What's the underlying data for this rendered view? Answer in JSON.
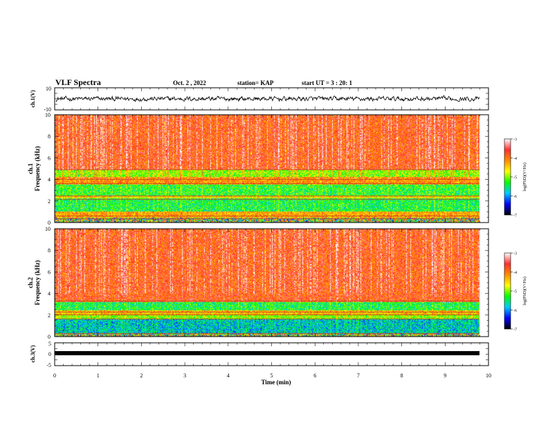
{
  "header": {
    "title": "VLF Spectra",
    "date": "Oct. 2 , 2022",
    "station": "station= KAP",
    "start_ut": "start UT = 3 : 20: 1"
  },
  "chart_data": [
    {
      "type": "line",
      "ylabel": "ch.1(V)",
      "ylim": [
        -10,
        10
      ],
      "yticks": [
        "10",
        "-10"
      ],
      "xlim": [
        0,
        10
      ],
      "series": [
        {
          "y_range": [
            -3,
            3
          ],
          "mean": 0,
          "color": "#000000"
        }
      ]
    },
    {
      "type": "heatmap",
      "ylabel_line1": "ch.1",
      "ylabel_line2": "Frequency (kHz)",
      "ylim": [
        0,
        10
      ],
      "yticks": [
        "0",
        "2",
        "4",
        "6",
        "8",
        "10"
      ],
      "xlim": [
        0,
        9.8
      ],
      "colorbar": {
        "label": "log(PSD)(V²/Hz)",
        "range": [
          -7,
          -3
        ],
        "ticks": [
          "-3",
          "-4",
          "-5",
          "-6",
          "-7"
        ],
        "colors": [
          "#ffffff",
          "#ff3030",
          "#ff8c00",
          "#ffff00",
          "#00ff00",
          "#00c8ff",
          "#0000ff",
          "#000000"
        ]
      },
      "bands": [
        {
          "from": 0,
          "to": 0.4,
          "level": "mixed"
        },
        {
          "from": 0.4,
          "to": 1.0,
          "level": -4.3
        },
        {
          "from": 1.0,
          "to": 2.2,
          "level": -5.4
        },
        {
          "from": 2.2,
          "to": 2.5,
          "level": -4.6
        },
        {
          "from": 2.5,
          "to": 3.5,
          "level": -5.3
        },
        {
          "from": 3.5,
          "to": 4.2,
          "level": -4.2
        },
        {
          "from": 4.2,
          "to": 4.9,
          "level": -5.0
        },
        {
          "from": 4.9,
          "to": 10,
          "level": -3.8
        }
      ],
      "horizontal_lines_khz": [
        0.3,
        0.6,
        2.1,
        2.45,
        3.6,
        4.0,
        4.9
      ]
    },
    {
      "type": "heatmap",
      "ylabel_line1": "ch.2",
      "ylabel_line2": "Frequency (kHz)",
      "ylim": [
        0,
        10
      ],
      "yticks": [
        "0",
        "2",
        "4",
        "6",
        "8",
        "10"
      ],
      "xlim": [
        0,
        9.8
      ],
      "colorbar": {
        "label": "log(PSD)(V²/Hz)",
        "range": [
          -7,
          -3
        ],
        "ticks": [
          "-3",
          "-4",
          "-5",
          "-6",
          "-7"
        ],
        "colors": [
          "#ffffff",
          "#ff3030",
          "#ff8c00",
          "#ffff00",
          "#00ff00",
          "#00c8ff",
          "#0000ff",
          "#000000"
        ]
      },
      "bands": [
        {
          "from": 0,
          "to": 0.3,
          "level": "mixed"
        },
        {
          "from": 0.3,
          "to": 1.6,
          "level": -5.8
        },
        {
          "from": 1.6,
          "to": 2.0,
          "level": -5.0
        },
        {
          "from": 2.0,
          "to": 2.4,
          "level": -4.4
        },
        {
          "from": 2.4,
          "to": 3.2,
          "level": -5.4
        },
        {
          "from": 3.2,
          "to": 10,
          "level": -3.8
        }
      ],
      "horizontal_lines_khz": [
        0.25,
        1.6,
        2.0,
        2.25,
        3.3
      ]
    },
    {
      "type": "line",
      "ylabel": "ch.3(V)",
      "ylim": [
        -5,
        5
      ],
      "yticks": [
        "5",
        "0",
        "-5"
      ],
      "xlim": [
        0,
        10
      ],
      "series": [
        {
          "value": 0,
          "thickness_v": 0.7,
          "color": "#000000"
        }
      ]
    }
  ],
  "xaxis": {
    "label": "Time (min)",
    "ticks": [
      "0",
      "1",
      "2",
      "3",
      "4",
      "5",
      "6",
      "7",
      "8",
      "9",
      "10"
    ],
    "range": [
      0,
      10
    ]
  }
}
